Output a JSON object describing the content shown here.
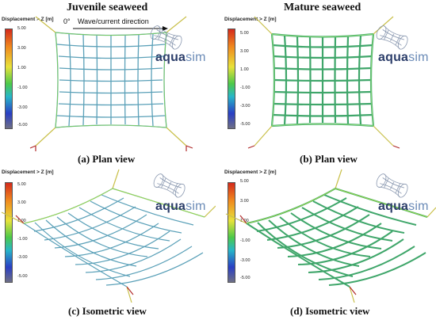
{
  "headers": {
    "left": "Juvenile seaweed",
    "right": "Mature seaweed"
  },
  "captions": {
    "a": "(a) Plan view",
    "b": "(b) Plan view",
    "c": "(c) Isometric view",
    "d": "(d) Isometric view"
  },
  "colorbar": {
    "title": "Displacement > Z [m]",
    "ticks": [
      "5.00",
      "3.00",
      "1.00",
      "-1.00",
      "-3.00",
      "-5.00"
    ],
    "gradient": [
      "#d42a1c",
      "#f08a1e",
      "#e8e23a",
      "#4cc94a",
      "#27b6c8",
      "#2a3fc4",
      "#6e6f86"
    ]
  },
  "flow_label": {
    "angle": "0°",
    "text": "Wave/current direction"
  },
  "brand": {
    "aqua": "aqua",
    "sim": "sim"
  }
}
